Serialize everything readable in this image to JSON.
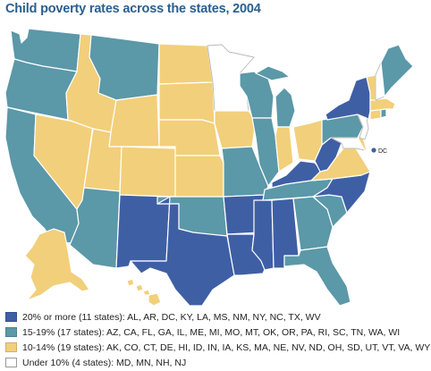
{
  "title": "Child poverty rates across the states, 2004",
  "colors": {
    "high": "#3f5fa5",
    "mid": "#5b98a8",
    "low": "#f2cf7a",
    "under": "#ffffff"
  },
  "legend": [
    {
      "category": "high",
      "text": "20% or more (11 states): AL, AR, DC, KY, LA, MS, NM, NY, NC, TX, WV"
    },
    {
      "category": "mid",
      "text": "15-19% (17 states): AZ, CA, FL, GA, IL, ME, MI, MO, MT, OK, OR, PA, RI, SC, TN, WA, WI"
    },
    {
      "category": "low",
      "text": "10-14% (19 states): AK, CO, CT, DE, HI, ID, IN, IA, KS, MA, NE, NV, ND, OH, SD, UT, VT, VA, WY"
    },
    {
      "category": "under",
      "text": "Under 10% (4 states): MD, MN, NH, NJ"
    }
  ],
  "map_labels": {
    "dc": "DC"
  },
  "states": {
    "WA": "mid",
    "OR": "mid",
    "CA": "mid",
    "NV": "low",
    "ID": "low",
    "MT": "mid",
    "WY": "low",
    "UT": "low",
    "AZ": "mid",
    "CO": "low",
    "NM": "high",
    "ND": "low",
    "SD": "low",
    "NE": "low",
    "KS": "low",
    "OK": "mid",
    "TX": "high",
    "MN": "under",
    "IA": "low",
    "MO": "mid",
    "AR": "high",
    "LA": "high",
    "WI": "mid",
    "IL": "mid",
    "MS": "high",
    "AL": "high",
    "MI": "mid",
    "IN": "low",
    "OH": "low",
    "KY": "high",
    "TN": "mid",
    "GA": "mid",
    "FL": "mid",
    "SC": "mid",
    "NC": "high",
    "VA": "low",
    "WV": "high",
    "PA": "mid",
    "NY": "high",
    "VT": "low",
    "NH": "under",
    "ME": "mid",
    "MA": "low",
    "RI": "mid",
    "CT": "low",
    "NJ": "under",
    "DE": "low",
    "MD": "under",
    "DC": "high",
    "AK": "low",
    "HI": "low"
  }
}
